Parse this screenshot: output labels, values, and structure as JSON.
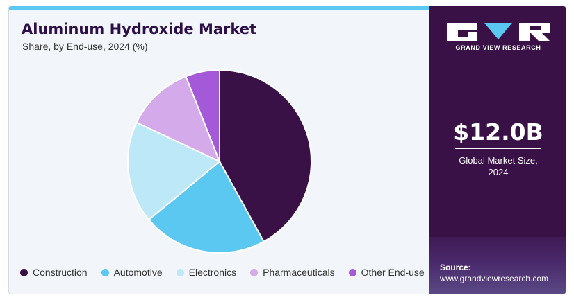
{
  "header": {
    "title": "Aluminum Hydroxide Market",
    "subtitle": "Share, by End-use, 2024 (%)"
  },
  "chart_data": {
    "type": "pie",
    "categories": [
      "Construction",
      "Automotive",
      "Electronics",
      "Pharmaceuticals",
      "Other End-use"
    ],
    "values": [
      42,
      22,
      18,
      12,
      6
    ],
    "colors": [
      "#3a1147",
      "#5bc8f2",
      "#bde8f8",
      "#d4aaea",
      "#a45ad8"
    ],
    "legend_position": "bottom"
  },
  "sidebar": {
    "brand": "GRAND VIEW RESEARCH",
    "market_size": "$12.0B",
    "market_size_label_line1": "Global Market Size,",
    "market_size_label_line2": "2024",
    "source_label": "Source:",
    "source_url": "www.grandviewresearch.com"
  }
}
